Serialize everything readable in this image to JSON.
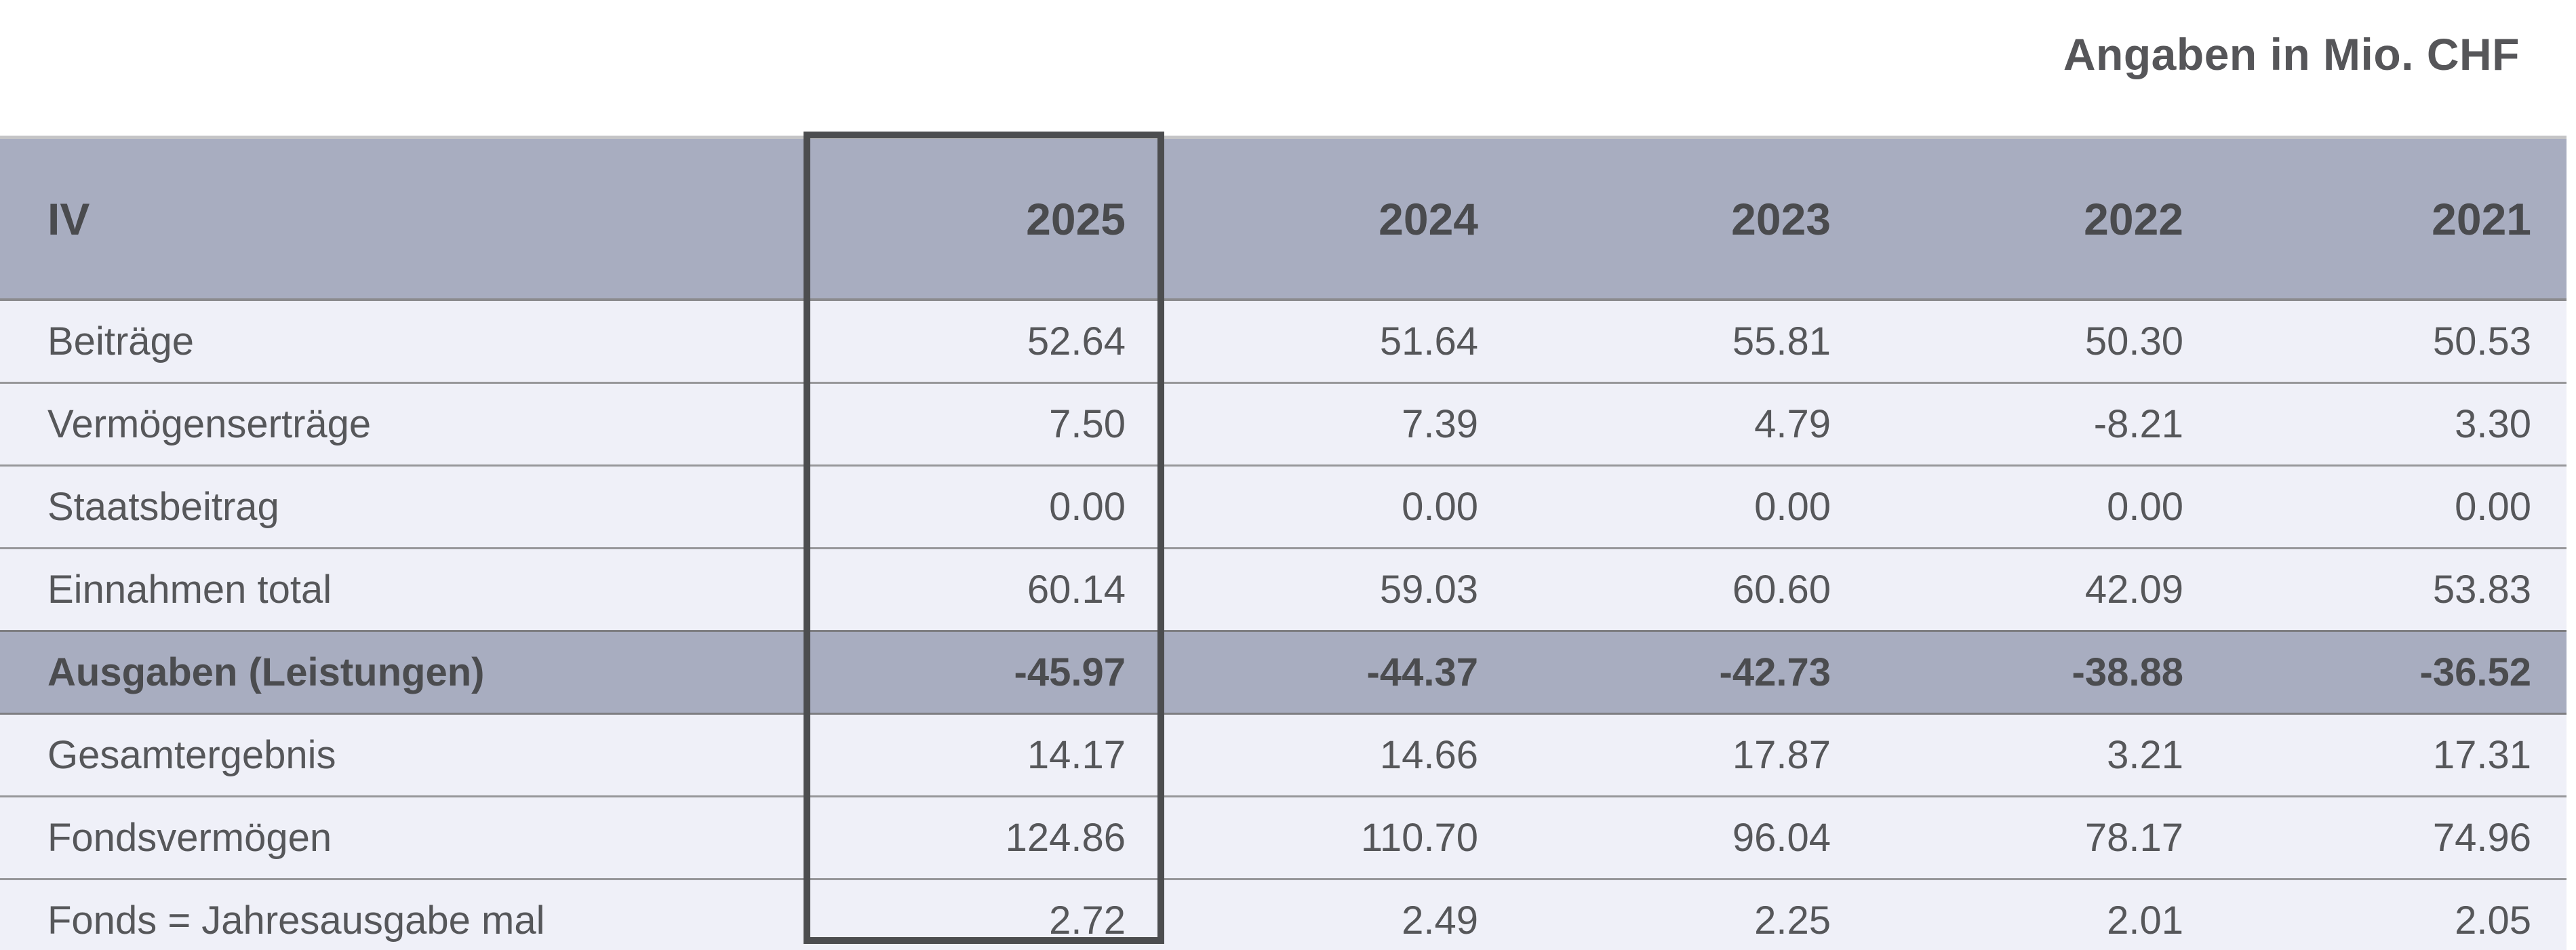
{
  "title": "Angaben in Mio. CHF",
  "table": {
    "header": {
      "label": "IV",
      "years": [
        "2025",
        "2024",
        "2023",
        "2022",
        "2021"
      ]
    },
    "highlighted_year": "2025",
    "rows": [
      {
        "label": "Beiträge",
        "values": [
          "52.64",
          "51.64",
          "55.81",
          "50.30",
          "50.53"
        ],
        "highlight": false
      },
      {
        "label": "Vermögenserträge",
        "values": [
          "7.50",
          "7.39",
          "4.79",
          "-8.21",
          "3.30"
        ],
        "highlight": false
      },
      {
        "label": "Staatsbeitrag",
        "values": [
          "0.00",
          "0.00",
          "0.00",
          "0.00",
          "0.00"
        ],
        "highlight": false
      },
      {
        "label": "Einnahmen total",
        "values": [
          "60.14",
          "59.03",
          "60.60",
          "42.09",
          "53.83"
        ],
        "highlight": false
      },
      {
        "label": "Ausgaben (Leistungen)",
        "values": [
          "-45.97",
          "-44.37",
          "-42.73",
          "-38.88",
          "-36.52"
        ],
        "highlight": true
      },
      {
        "label": "Gesamtergebnis",
        "values": [
          "14.17",
          "14.66",
          "17.87",
          "3.21",
          "17.31"
        ],
        "highlight": false
      },
      {
        "label": "Fondsvermögen",
        "values": [
          "124.86",
          "110.70",
          "96.04",
          "78.17",
          "74.96"
        ],
        "highlight": false
      },
      {
        "label": "Fonds = Jahresausgabe mal",
        "values": [
          "2.72",
          "2.49",
          "2.25",
          "2.01",
          "2.05"
        ],
        "highlight": false
      }
    ]
  },
  "colors": {
    "header_bg": "#a8adc0",
    "row_bg": "#eff0f8",
    "highlight_row_bg": "#a8adc0",
    "box_border": "#4c4d4f",
    "text": "#56575a",
    "header_text": "#4a4b4e",
    "title_text": "#565659"
  }
}
